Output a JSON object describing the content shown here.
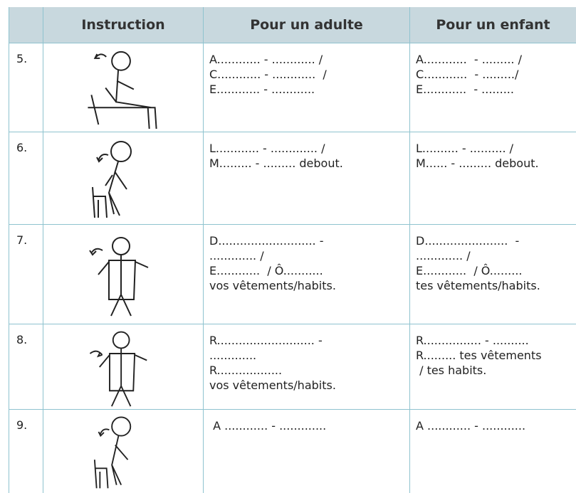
{
  "table": {
    "header": [
      "Instruction",
      "Pour un adulte",
      "Pour un enfant"
    ],
    "rows": [
      {
        "number": "5.",
        "adult": [
          "A............ - ............ /",
          "C............ - ............  /",
          "E............ - ............"
        ],
        "child": [
          "A............  - ......... /",
          "C............  - ........./",
          "E............  - ........."
        ]
      },
      {
        "number": "6.",
        "adult": [
          "L............ - ............. /",
          "M......... - ......... debout."
        ],
        "child": [
          "L.......... - .......... /",
          "M...... - ......... debout."
        ]
      },
      {
        "number": "7.",
        "adult": [
          "D........................... -",
          "............. /",
          "E............  / Ô...........",
          "vos vêtements/habits."
        ],
        "child": [
          "D.......................  -",
          "............. /",
          "E............  / Ô.........",
          "tes vêtements/habits."
        ]
      },
      {
        "number": "8.",
        "adult": [
          "R........................... -",
          ".............",
          "R..................",
          "vos vêtements/habits."
        ],
        "child": [
          "R................ - ..........",
          "R......... tes vêtements",
          " / tes habits."
        ]
      },
      {
        "number": "9.",
        "adult": [
          " A ............ - ............."
        ],
        "child": [
          "A ............ - ............"
        ]
      }
    ]
  }
}
